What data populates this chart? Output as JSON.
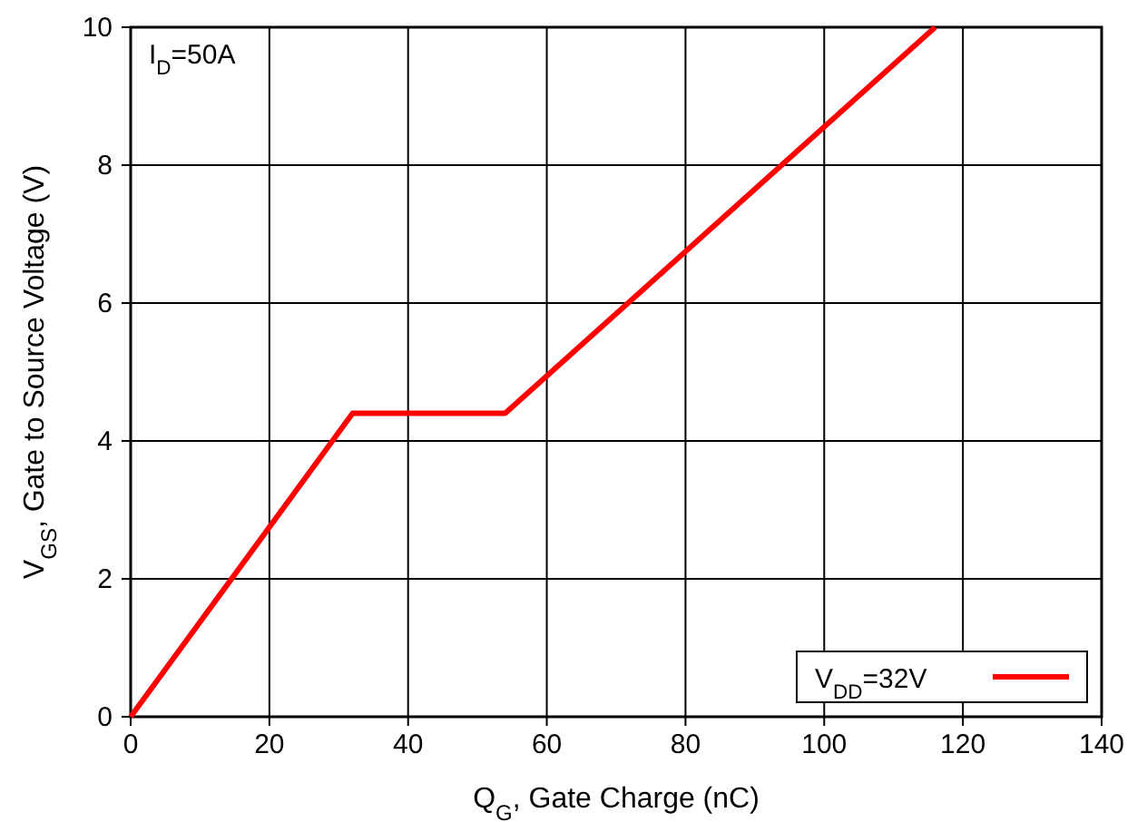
{
  "chart_data": {
    "type": "line",
    "xlabel": "Q$_{G}$, Gate Charge (nC)",
    "ylabel": "V$_{GS}$, Gate to Source Voltage (V)",
    "annotations": [
      "I$_{D}$=50A"
    ],
    "series": [
      {
        "name": "V$_{DD}$=32V",
        "color": "#ff0000",
        "x": [
          0,
          32,
          54,
          116
        ],
        "values": [
          0,
          4.4,
          4.4,
          10
        ]
      }
    ],
    "xlim": [
      0,
      140
    ],
    "xticks": [
      0,
      20,
      40,
      60,
      80,
      100,
      120,
      140
    ],
    "ylim": [
      0,
      10
    ],
    "yticks": [
      0,
      2,
      4,
      6,
      8,
      10
    ],
    "grid": true,
    "legend": "bottom right",
    "marker": "none",
    "line_style": "solid"
  }
}
